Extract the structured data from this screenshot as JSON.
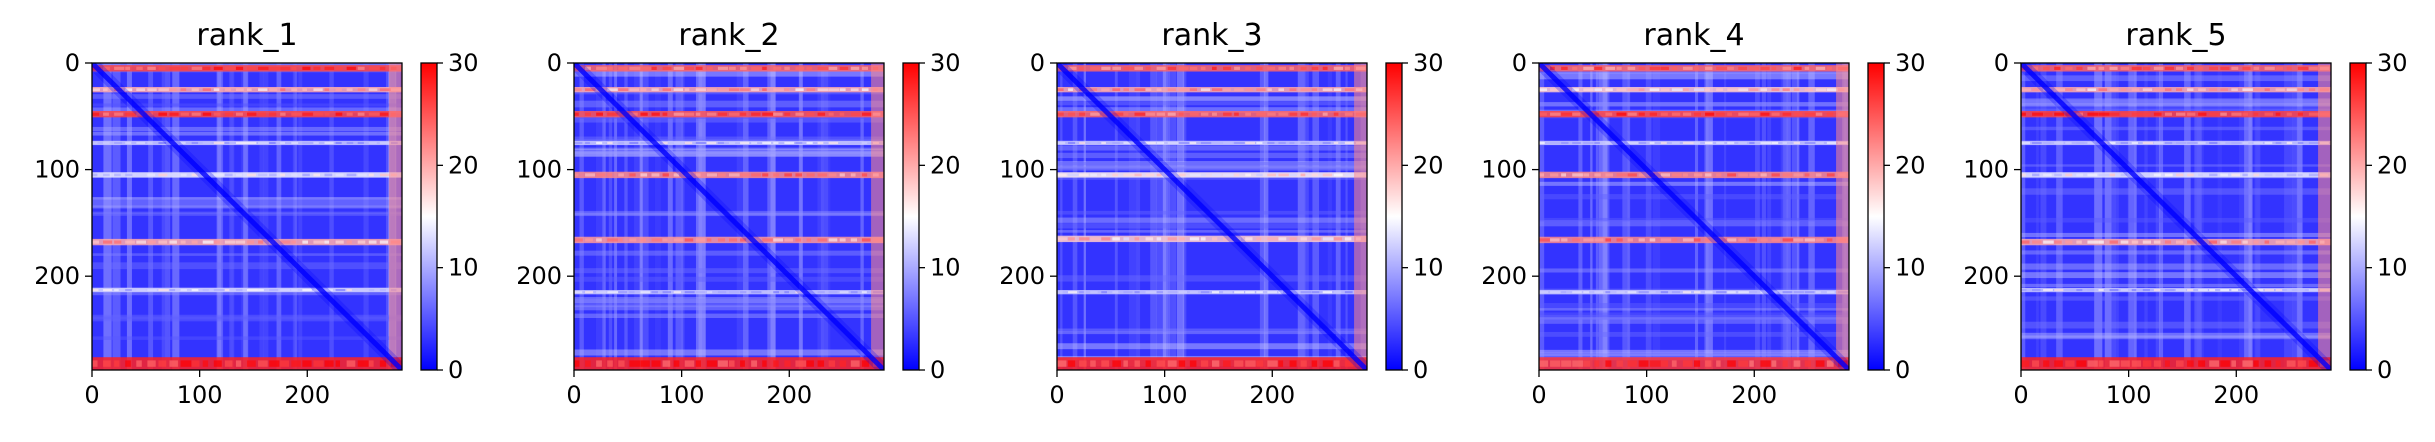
{
  "chart_data": {
    "type": "heatmap",
    "panels": [
      {
        "title": "rank_1",
        "xticks": [
          0,
          100,
          200
        ],
        "yticks": [
          0,
          100,
          200
        ],
        "xlim": [
          0,
          288
        ],
        "ylim": [
          288,
          0
        ],
        "colorbar": {
          "min": 0,
          "max": 30,
          "ticks": [
            0,
            10,
            20,
            30
          ]
        },
        "bands": [
          {
            "center": 5,
            "width": 6,
            "value": 26
          },
          {
            "center": 25,
            "width": 5,
            "value": 20
          },
          {
            "center": 48,
            "width": 6,
            "value": 26
          },
          {
            "center": 75,
            "width": 4,
            "value": 12
          },
          {
            "center": 105,
            "width": 5,
            "value": 14
          },
          {
            "center": 168,
            "width": 6,
            "value": 20
          },
          {
            "center": 213,
            "width": 4,
            "value": 12
          },
          {
            "center": 282,
            "width": 12,
            "value": 28
          }
        ]
      },
      {
        "title": "rank_2",
        "xticks": [
          0,
          100,
          200
        ],
        "yticks": [
          0,
          100,
          200
        ],
        "xlim": [
          0,
          288
        ],
        "ylim": [
          288,
          0
        ],
        "colorbar": {
          "min": 0,
          "max": 30,
          "ticks": [
            0,
            10,
            20,
            30
          ]
        },
        "bands": [
          {
            "center": 5,
            "width": 6,
            "value": 24
          },
          {
            "center": 25,
            "width": 5,
            "value": 20
          },
          {
            "center": 48,
            "width": 6,
            "value": 25
          },
          {
            "center": 75,
            "width": 4,
            "value": 12
          },
          {
            "center": 105,
            "width": 6,
            "value": 22
          },
          {
            "center": 166,
            "width": 6,
            "value": 21
          },
          {
            "center": 215,
            "width": 4,
            "value": 12
          },
          {
            "center": 282,
            "width": 12,
            "value": 28
          }
        ]
      },
      {
        "title": "rank_3",
        "xticks": [
          0,
          100,
          200
        ],
        "yticks": [
          0,
          100,
          200
        ],
        "xlim": [
          0,
          288
        ],
        "ylim": [
          288,
          0
        ],
        "colorbar": {
          "min": 0,
          "max": 30,
          "ticks": [
            0,
            10,
            20,
            30
          ]
        },
        "bands": [
          {
            "center": 5,
            "width": 6,
            "value": 24
          },
          {
            "center": 25,
            "width": 5,
            "value": 20
          },
          {
            "center": 48,
            "width": 6,
            "value": 24
          },
          {
            "center": 75,
            "width": 4,
            "value": 12
          },
          {
            "center": 105,
            "width": 5,
            "value": 16
          },
          {
            "center": 165,
            "width": 6,
            "value": 18
          },
          {
            "center": 215,
            "width": 4,
            "value": 12
          },
          {
            "center": 282,
            "width": 12,
            "value": 28
          }
        ]
      },
      {
        "title": "rank_4",
        "xticks": [
          0,
          100,
          200
        ],
        "yticks": [
          0,
          100,
          200
        ],
        "xlim": [
          0,
          288
        ],
        "ylim": [
          288,
          0
        ],
        "colorbar": {
          "min": 0,
          "max": 30,
          "ticks": [
            0,
            10,
            20,
            30
          ]
        },
        "bands": [
          {
            "center": 5,
            "width": 6,
            "value": 24
          },
          {
            "center": 25,
            "width": 5,
            "value": 18
          },
          {
            "center": 48,
            "width": 6,
            "value": 26
          },
          {
            "center": 75,
            "width": 4,
            "value": 12
          },
          {
            "center": 105,
            "width": 6,
            "value": 22
          },
          {
            "center": 166,
            "width": 6,
            "value": 22
          },
          {
            "center": 215,
            "width": 4,
            "value": 12
          },
          {
            "center": 282,
            "width": 12,
            "value": 27
          }
        ]
      },
      {
        "title": "rank_5",
        "xticks": [
          0,
          100,
          200
        ],
        "yticks": [
          0,
          100,
          200
        ],
        "xlim": [
          0,
          288
        ],
        "ylim": [
          288,
          0
        ],
        "colorbar": {
          "min": 0,
          "max": 30,
          "ticks": [
            0,
            10,
            20,
            30
          ]
        },
        "bands": [
          {
            "center": 5,
            "width": 6,
            "value": 24
          },
          {
            "center": 25,
            "width": 5,
            "value": 20
          },
          {
            "center": 48,
            "width": 6,
            "value": 26
          },
          {
            "center": 75,
            "width": 4,
            "value": 12
          },
          {
            "center": 105,
            "width": 5,
            "value": 14
          },
          {
            "center": 168,
            "width": 6,
            "value": 20
          },
          {
            "center": 213,
            "width": 4,
            "value": 12
          },
          {
            "center": 282,
            "width": 12,
            "value": 28
          }
        ]
      }
    ]
  },
  "colors": {
    "cmap_low": "#0000ff",
    "cmap_mid": "#ffffff",
    "cmap_high": "#ff0000"
  }
}
